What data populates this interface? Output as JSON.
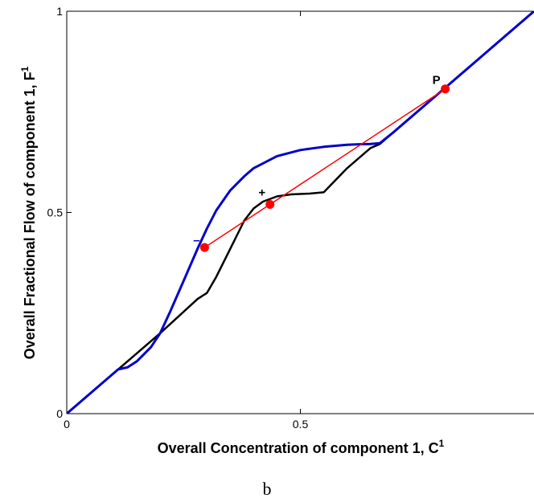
{
  "chart_data": {
    "type": "line",
    "xlabel": "Overall Concentration of component 1, C",
    "xlabel_sup": "1",
    "ylabel": "Overall Fractional Flow of component 1, F",
    "ylabel_sup": "1",
    "xlim": [
      0,
      1
    ],
    "ylim": [
      0,
      1
    ],
    "x_ticks": [
      {
        "value": 0,
        "label": "0"
      },
      {
        "value": 0.5,
        "label": "0.5"
      }
    ],
    "y_ticks": [
      {
        "value": 0,
        "label": "0"
      },
      {
        "value": 0.5,
        "label": "0.5"
      },
      {
        "value": 1,
        "label": "1"
      }
    ],
    "grid": false,
    "series": [
      {
        "color": "#000000",
        "x": [
          0,
          0.11,
          0.2,
          0.28,
          0.3,
          0.32,
          0.35,
          0.38,
          0.4,
          0.42,
          0.45,
          0.48,
          0.5,
          0.52,
          0.55,
          0.6,
          0.65,
          0.67,
          0.7,
          0.8,
          0.9,
          1.0
        ],
        "y": [
          0,
          0.11,
          0.2,
          0.285,
          0.3,
          0.34,
          0.41,
          0.48,
          0.51,
          0.527,
          0.54,
          0.545,
          0.546,
          0.547,
          0.55,
          0.61,
          0.66,
          0.67,
          0.7,
          0.8,
          0.9,
          1.0
        ]
      },
      {
        "color": "#0000cc",
        "x": [
          0,
          0.1,
          0.11,
          0.13,
          0.15,
          0.18,
          0.2,
          0.22,
          0.25,
          0.28,
          0.3,
          0.32,
          0.35,
          0.38,
          0.4,
          0.43,
          0.45,
          0.5,
          0.55,
          0.6,
          0.62,
          0.65,
          0.67,
          0.7,
          0.8,
          0.9,
          1.0
        ],
        "y": [
          0,
          0.1,
          0.11,
          0.115,
          0.13,
          0.165,
          0.2,
          0.25,
          0.33,
          0.41,
          0.46,
          0.505,
          0.555,
          0.59,
          0.61,
          0.628,
          0.64,
          0.655,
          0.663,
          0.668,
          0.669,
          0.67,
          0.672,
          0.7,
          0.8,
          0.9,
          1.0
        ]
      },
      {
        "color": "#ff0000",
        "x": [
          0.295,
          0.435,
          0.81
        ],
        "y": [
          0.413,
          0.52,
          0.807
        ]
      }
    ],
    "points": [
      {
        "label": "–",
        "x": 0.295,
        "y": 0.413,
        "color": "#ff0000",
        "label_color": "#0000cc"
      },
      {
        "label": "+",
        "x": 0.435,
        "y": 0.52,
        "color": "#ff0000",
        "label_color": "#000000"
      },
      {
        "label": "P",
        "x": 0.81,
        "y": 0.807,
        "color": "#ff0000",
        "label_color": "#000000"
      }
    ]
  },
  "caption": "b"
}
